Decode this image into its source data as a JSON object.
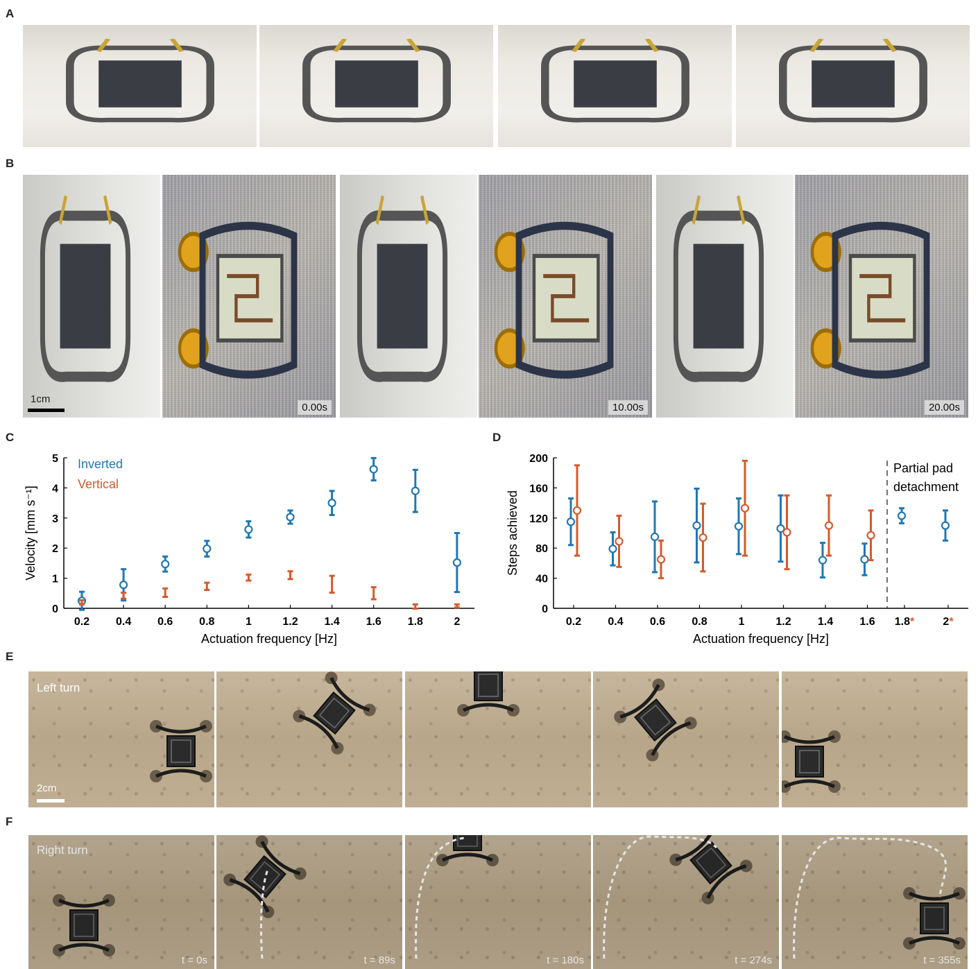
{
  "panel_labels": {
    "a": "A",
    "b": "B",
    "c": "C",
    "d": "D",
    "e": "E",
    "f": "F"
  },
  "panel_b": {
    "scale": "1cm",
    "times": [
      "0.00s",
      "10.00s",
      "20.00s"
    ]
  },
  "panel_e": {
    "label": "Left turn",
    "scale": "2cm"
  },
  "panel_f": {
    "label": "Right turn",
    "times": [
      "t = 0s",
      "t = 89s",
      "t = 180s",
      "t = 274s",
      "t = 355s"
    ]
  },
  "colors": {
    "inverted": "#1f77b4",
    "vertical": "#d55a2b",
    "asterisk": "#d55a2b"
  },
  "chart_data": [
    {
      "type": "scatter",
      "xlabel": "Actuation frequency [Hz]",
      "ylabel": "Velocity [mm s⁻¹]",
      "ylim": [
        0,
        5
      ],
      "yticks": [
        "0",
        "1",
        "2",
        "3",
        "4",
        "5"
      ],
      "categories": [
        "0.2",
        "0.4",
        "0.6",
        "0.8",
        "1",
        "1.2",
        "1.4",
        "1.6",
        "1.8",
        "2"
      ],
      "legend": [
        "Inverted",
        "Vertical"
      ],
      "series": [
        {
          "name": "Inverted",
          "mean": [
            0.25,
            0.78,
            1.47,
            1.98,
            2.62,
            3.03,
            3.5,
            4.62,
            3.9,
            1.52
          ],
          "err": [
            0.3,
            0.52,
            0.25,
            0.26,
            0.27,
            0.22,
            0.4,
            0.37,
            0.7,
            0.98
          ]
        },
        {
          "name": "Vertical",
          "mean": [
            0.2,
            0.42,
            0.52,
            0.73,
            1.02,
            1.1,
            0.8,
            0.5,
            0.06,
            0.08
          ],
          "err": [
            0.07,
            0.1,
            0.14,
            0.12,
            0.1,
            0.13,
            0.28,
            0.2,
            0.07,
            0.05
          ]
        }
      ]
    },
    {
      "type": "scatter",
      "xlabel": "Actuation frequency [Hz]",
      "ylabel": "Steps achieved",
      "ylim": [
        0,
        200
      ],
      "yticks": [
        "0",
        "40",
        "80",
        "120",
        "160",
        "200"
      ],
      "categories": [
        "0.2",
        "0.4",
        "0.6",
        "0.8",
        "1",
        "1.2",
        "1.4",
        "1.6",
        "1.8",
        "2"
      ],
      "starred": [
        "1.8",
        "2"
      ],
      "annotation": [
        "Partial pad",
        "detachment"
      ],
      "series": [
        {
          "name": "Inverted",
          "mean": [
            115,
            79,
            95,
            110,
            109,
            106,
            64,
            65,
            123,
            110
          ],
          "err": [
            31,
            22,
            47,
            49,
            37,
            44,
            23,
            21,
            10,
            20
          ]
        },
        {
          "name": "Vertical",
          "mean": [
            130,
            89,
            65,
            94,
            133,
            101,
            110,
            97,
            null,
            null
          ],
          "err": [
            60,
            34,
            25,
            45,
            63,
            49,
            40,
            33,
            null,
            null
          ]
        }
      ]
    }
  ]
}
